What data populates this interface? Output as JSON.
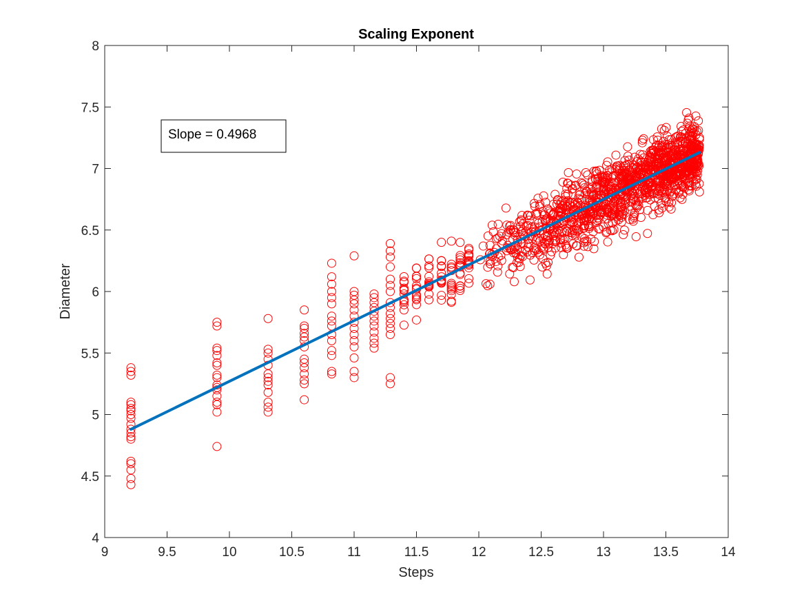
{
  "chart_data": {
    "type": "scatter",
    "title": "Scaling Exponent",
    "xlabel": "Steps",
    "ylabel": "Diameter",
    "xlim": [
      9,
      14
    ],
    "ylim": [
      4,
      8
    ],
    "xticks": [
      9,
      9.5,
      10,
      10.5,
      11,
      11.5,
      12,
      12.5,
      13,
      13.5,
      14
    ],
    "yticks": [
      4,
      4.5,
      5,
      5.5,
      6,
      6.5,
      7,
      7.5,
      8
    ],
    "xtick_labels": [
      "9",
      "9.5",
      "10",
      "10.5",
      "11",
      "11.5",
      "12",
      "12.5",
      "13",
      "13.5",
      "14"
    ],
    "ytick_labels": [
      "4",
      "4.5",
      "5",
      "5.5",
      "6",
      "6.5",
      "7",
      "7.5",
      "8"
    ],
    "grid": false,
    "annotation": {
      "text": "Slope = 0.4968",
      "placement": "upper-left"
    },
    "colors": {
      "markers": "#ff0000",
      "fit_line": "#0072bd",
      "axes": "#262626"
    },
    "series": [
      {
        "kind": "scatter",
        "marker": "open-circle",
        "groups": [
          {
            "x": 9.21,
            "y": [
              4.43,
              4.48,
              4.55,
              4.6,
              4.62,
              4.8,
              4.82,
              4.85,
              4.88,
              4.92,
              4.97,
              5.0,
              5.03,
              5.05,
              5.08,
              5.1,
              5.32,
              5.35,
              5.38
            ]
          },
          {
            "x": 9.9,
            "y": [
              4.74,
              5.02,
              5.08,
              5.1,
              5.15,
              5.2,
              5.22,
              5.24,
              5.3,
              5.32,
              5.4,
              5.42,
              5.48,
              5.52,
              5.54,
              5.72,
              5.75
            ]
          },
          {
            "x": 10.31,
            "y": [
              5.02,
              5.06,
              5.1,
              5.18,
              5.24,
              5.27,
              5.3,
              5.33,
              5.4,
              5.45,
              5.5,
              5.53,
              5.78
            ]
          },
          {
            "x": 10.6,
            "y": [
              5.12,
              5.25,
              5.28,
              5.33,
              5.38,
              5.42,
              5.45,
              5.55,
              5.6,
              5.63,
              5.66,
              5.7,
              5.72,
              5.85
            ]
          },
          {
            "x": 10.82,
            "y": [
              5.33,
              5.35,
              5.48,
              5.52,
              5.6,
              5.65,
              5.72,
              5.76,
              5.8,
              5.9,
              5.95,
              6.0,
              6.06,
              6.12,
              6.23
            ]
          },
          {
            "x": 11.0,
            "y": [
              5.3,
              5.35,
              5.46,
              5.55,
              5.6,
              5.65,
              5.7,
              5.75,
              5.8,
              5.85,
              5.9,
              5.93,
              5.97,
              6.0,
              6.29
            ]
          },
          {
            "x": 11.16,
            "y": [
              5.54,
              5.58,
              5.62,
              5.67,
              5.72,
              5.76,
              5.8,
              5.84,
              5.87,
              5.91,
              5.95,
              5.98
            ]
          },
          {
            "x": 11.29,
            "y": [
              5.25,
              5.3,
              5.65,
              5.7,
              5.74,
              5.78,
              5.82,
              5.87,
              5.91,
              6.0,
              6.05,
              6.1,
              6.2,
              6.28,
              6.33,
              6.39
            ]
          }
        ]
      },
      {
        "name": "",
        "kind": "fit-line",
        "x": [
          9.21,
          13.77
        ],
        "y": [
          4.88,
          7.13
        ]
      }
    ]
  }
}
